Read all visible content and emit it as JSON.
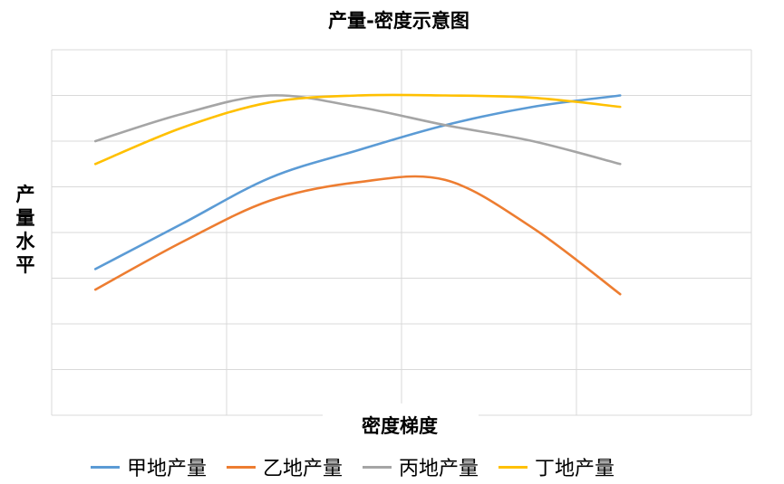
{
  "chart_data": {
    "type": "line",
    "title": "产量-密度示意图",
    "xlabel": "密度梯度",
    "ylabel": "产量水平",
    "x": [
      1,
      2,
      3,
      4,
      5,
      6,
      7
    ],
    "ylim": [
      0,
      8
    ],
    "xlim": [
      0.5,
      8.5
    ],
    "grid": true,
    "legend_position": "bottom",
    "series": [
      {
        "name": "甲地产量",
        "color": "#5B9BD5",
        "x": [
          1,
          2,
          3,
          4,
          5,
          6,
          7
        ],
        "values": [
          3.2,
          4.2,
          5.2,
          5.8,
          6.35,
          6.75,
          7.0
        ]
      },
      {
        "name": "乙地产量",
        "color": "#ED7D31",
        "x": [
          1,
          2,
          3,
          4,
          5,
          6,
          7
        ],
        "values": [
          2.75,
          3.8,
          4.7,
          5.1,
          5.15,
          4.1,
          2.65
        ]
      },
      {
        "name": "丙地产量",
        "color": "#A5A5A5",
        "x": [
          1,
          2,
          3,
          4,
          5,
          6,
          7
        ],
        "values": [
          6.0,
          6.6,
          7.0,
          6.75,
          6.35,
          6.0,
          5.5
        ]
      },
      {
        "name": "丁地产量",
        "color": "#FFC000",
        "x": [
          1,
          2,
          3,
          4,
          5,
          6,
          7
        ],
        "values": [
          5.5,
          6.3,
          6.85,
          7.0,
          7.0,
          6.95,
          6.75
        ]
      }
    ]
  }
}
